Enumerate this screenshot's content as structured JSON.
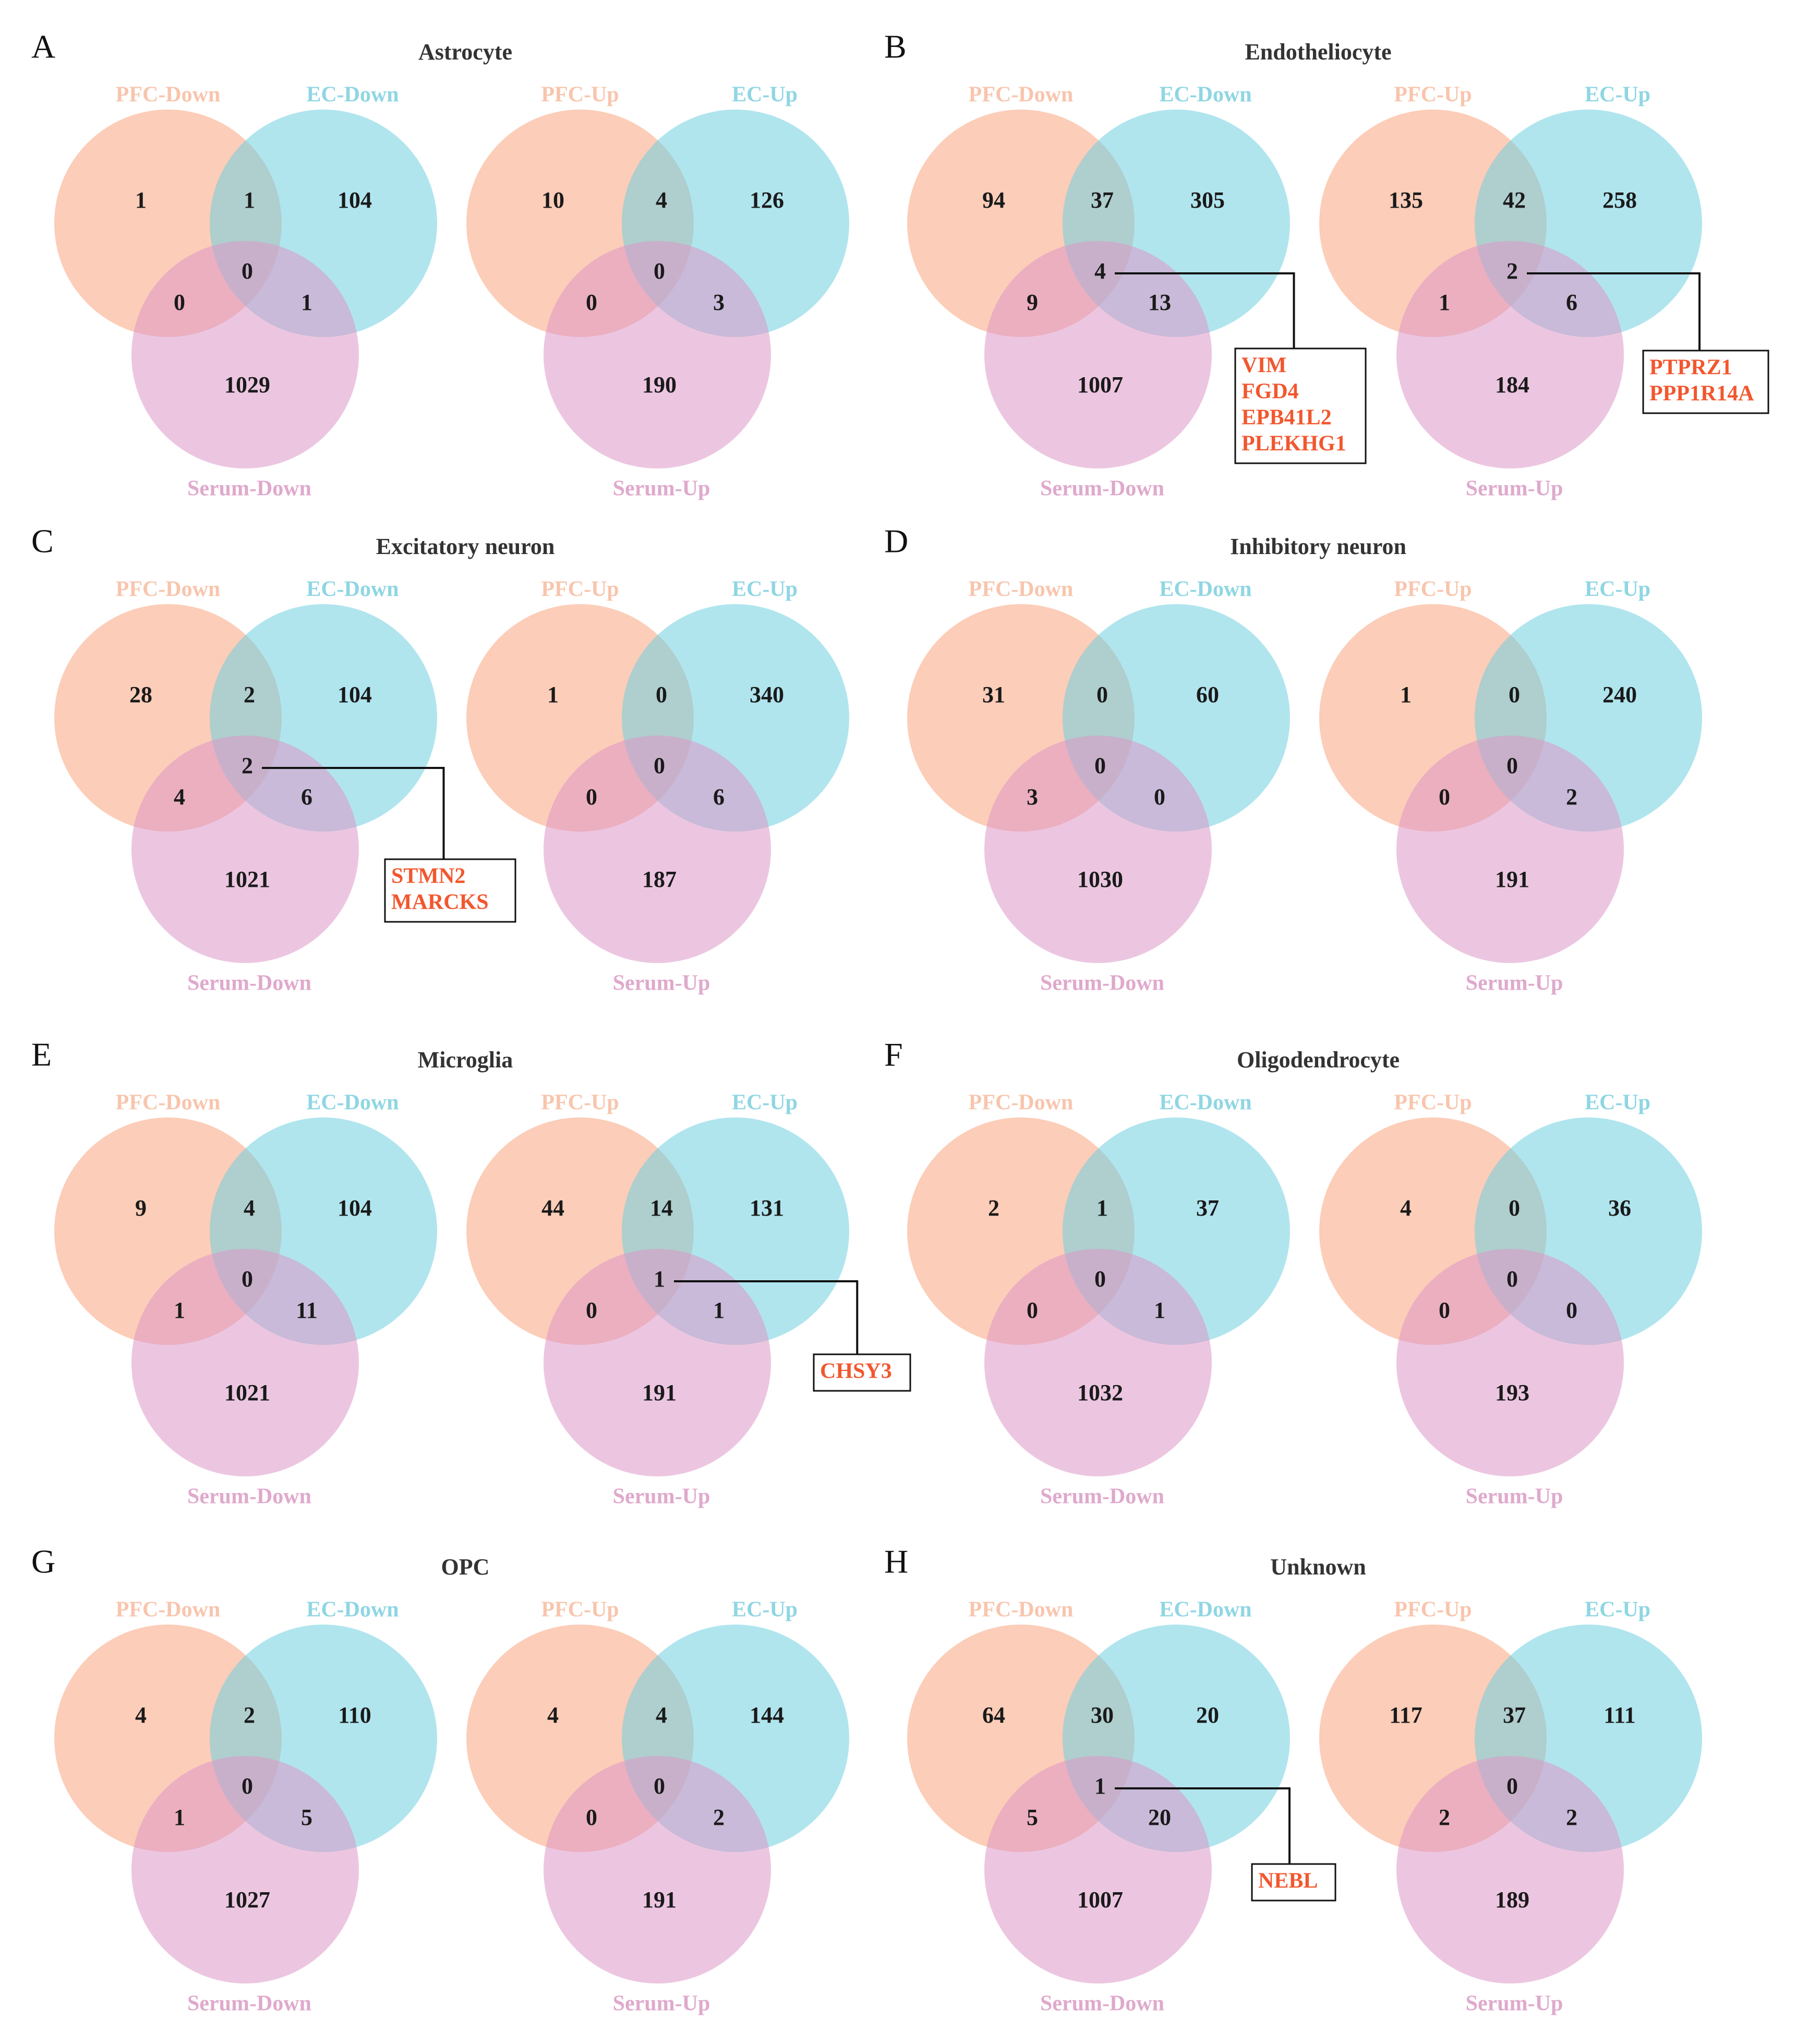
{
  "colors": {
    "pfc": "#f9a47e",
    "ec": "#6fd0e0",
    "serum": "#dc98c7",
    "pfc_label": "#f8c5ad",
    "ec_label": "#8fd6e3",
    "serum_label": "#dfa9cc",
    "gene": "#f2572e",
    "number": "#1a1a1a"
  },
  "panels": [
    {
      "letter": "A",
      "title": "Astrocyte",
      "down": {
        "labels": [
          "PFC-Down",
          "EC-Down",
          "Serum-Down"
        ],
        "regions": {
          "pfc_only": "1",
          "ec_only": "104",
          "serum_only": "1029",
          "pfc_ec": "1",
          "pfc_serum": "0",
          "ec_serum": "1",
          "all": "0"
        },
        "genes": []
      },
      "up": {
        "labels": [
          "PFC-Up",
          "EC-Up",
          "Serum-Up"
        ],
        "regions": {
          "pfc_only": "10",
          "ec_only": "126",
          "serum_only": "190",
          "pfc_ec": "4",
          "pfc_serum": "0",
          "ec_serum": "3",
          "all": "0"
        },
        "genes": []
      }
    },
    {
      "letter": "B",
      "title": "Endotheliocyte",
      "down": {
        "labels": [
          "PFC-Down",
          "EC-Down",
          "Serum-Down"
        ],
        "regions": {
          "pfc_only": "94",
          "ec_only": "305",
          "serum_only": "1007",
          "pfc_ec": "37",
          "pfc_serum": "9",
          "ec_serum": "13",
          "all": "4"
        },
        "genes": [
          "VIM",
          "FGD4",
          "EPB41L2",
          "PLEKHG1"
        ]
      },
      "up": {
        "labels": [
          "PFC-Up",
          "EC-Up",
          "Serum-Up"
        ],
        "regions": {
          "pfc_only": "135",
          "ec_only": "258",
          "serum_only": "184",
          "pfc_ec": "42",
          "pfc_serum": "1",
          "ec_serum": "6",
          "all": "2"
        },
        "genes": [
          "PTPRZ1",
          "PPP1R14A"
        ]
      }
    },
    {
      "letter": "C",
      "title": "Excitatory neuron",
      "down": {
        "labels": [
          "PFC-Down",
          "EC-Down",
          "Serum-Down"
        ],
        "regions": {
          "pfc_only": "28",
          "ec_only": "104",
          "serum_only": "1021",
          "pfc_ec": "2",
          "pfc_serum": "4",
          "ec_serum": "6",
          "all": "2"
        },
        "genes": [
          "STMN2",
          "MARCKS"
        ]
      },
      "up": {
        "labels": [
          "PFC-Up",
          "EC-Up",
          "Serum-Up"
        ],
        "regions": {
          "pfc_only": "1",
          "ec_only": "340",
          "serum_only": "187",
          "pfc_ec": "0",
          "pfc_serum": "0",
          "ec_serum": "6",
          "all": "0"
        },
        "genes": []
      }
    },
    {
      "letter": "D",
      "title": "Inhibitory neuron",
      "down": {
        "labels": [
          "PFC-Down",
          "EC-Down",
          "Serum-Down"
        ],
        "regions": {
          "pfc_only": "31",
          "ec_only": "60",
          "serum_only": "1030",
          "pfc_ec": "0",
          "pfc_serum": "3",
          "ec_serum": "0",
          "all": "0"
        },
        "genes": []
      },
      "up": {
        "labels": [
          "PFC-Up",
          "EC-Up",
          "Serum-Up"
        ],
        "regions": {
          "pfc_only": "1",
          "ec_only": "240",
          "serum_only": "191",
          "pfc_ec": "0",
          "pfc_serum": "0",
          "ec_serum": "2",
          "all": "0"
        },
        "genes": []
      }
    },
    {
      "letter": "E",
      "title": "Microglia",
      "down": {
        "labels": [
          "PFC-Down",
          "EC-Down",
          "Serum-Down"
        ],
        "regions": {
          "pfc_only": "9",
          "ec_only": "104",
          "serum_only": "1021",
          "pfc_ec": "4",
          "pfc_serum": "1",
          "ec_serum": "11",
          "all": "0"
        },
        "genes": []
      },
      "up": {
        "labels": [
          "PFC-Up",
          "EC-Up",
          "Serum-Up"
        ],
        "regions": {
          "pfc_only": "44",
          "ec_only": "131",
          "serum_only": "191",
          "pfc_ec": "14",
          "pfc_serum": "0",
          "ec_serum": "1",
          "all": "1"
        },
        "genes": [
          "CHSY3"
        ]
      }
    },
    {
      "letter": "F",
      "title": "Oligodendrocyte",
      "down": {
        "labels": [
          "PFC-Down",
          "EC-Down",
          "Serum-Down"
        ],
        "regions": {
          "pfc_only": "2",
          "ec_only": "37",
          "serum_only": "1032",
          "pfc_ec": "1",
          "pfc_serum": "0",
          "ec_serum": "1",
          "all": "0"
        },
        "genes": []
      },
      "up": {
        "labels": [
          "PFC-Up",
          "EC-Up",
          "Serum-Up"
        ],
        "regions": {
          "pfc_only": "4",
          "ec_only": "36",
          "serum_only": "193",
          "pfc_ec": "0",
          "pfc_serum": "0",
          "ec_serum": "0",
          "all": "0"
        },
        "genes": []
      }
    },
    {
      "letter": "G",
      "title": "OPC",
      "down": {
        "labels": [
          "PFC-Down",
          "EC-Down",
          "Serum-Down"
        ],
        "regions": {
          "pfc_only": "4",
          "ec_only": "110",
          "serum_only": "1027",
          "pfc_ec": "2",
          "pfc_serum": "1",
          "ec_serum": "5",
          "all": "0"
        },
        "genes": []
      },
      "up": {
        "labels": [
          "PFC-Up",
          "EC-Up",
          "Serum-Up"
        ],
        "regions": {
          "pfc_only": "4",
          "ec_only": "144",
          "serum_only": "191",
          "pfc_ec": "4",
          "pfc_serum": "0",
          "ec_serum": "2",
          "all": "0"
        },
        "genes": []
      }
    },
    {
      "letter": "H",
      "title": "Unknown",
      "down": {
        "labels": [
          "PFC-Down",
          "EC-Down",
          "Serum-Down"
        ],
        "regions": {
          "pfc_only": "64",
          "ec_only": "20",
          "serum_only": "1007",
          "pfc_ec": "30",
          "pfc_serum": "5",
          "ec_serum": "20",
          "all": "1"
        },
        "genes": [
          "NEBL"
        ]
      },
      "up": {
        "labels": [
          "PFC-Up",
          "EC-Up",
          "Serum-Up"
        ],
        "regions": {
          "pfc_only": "117",
          "ec_only": "111",
          "serum_only": "189",
          "pfc_ec": "37",
          "pfc_serum": "2",
          "ec_serum": "2",
          "all": "0"
        },
        "genes": []
      }
    }
  ]
}
